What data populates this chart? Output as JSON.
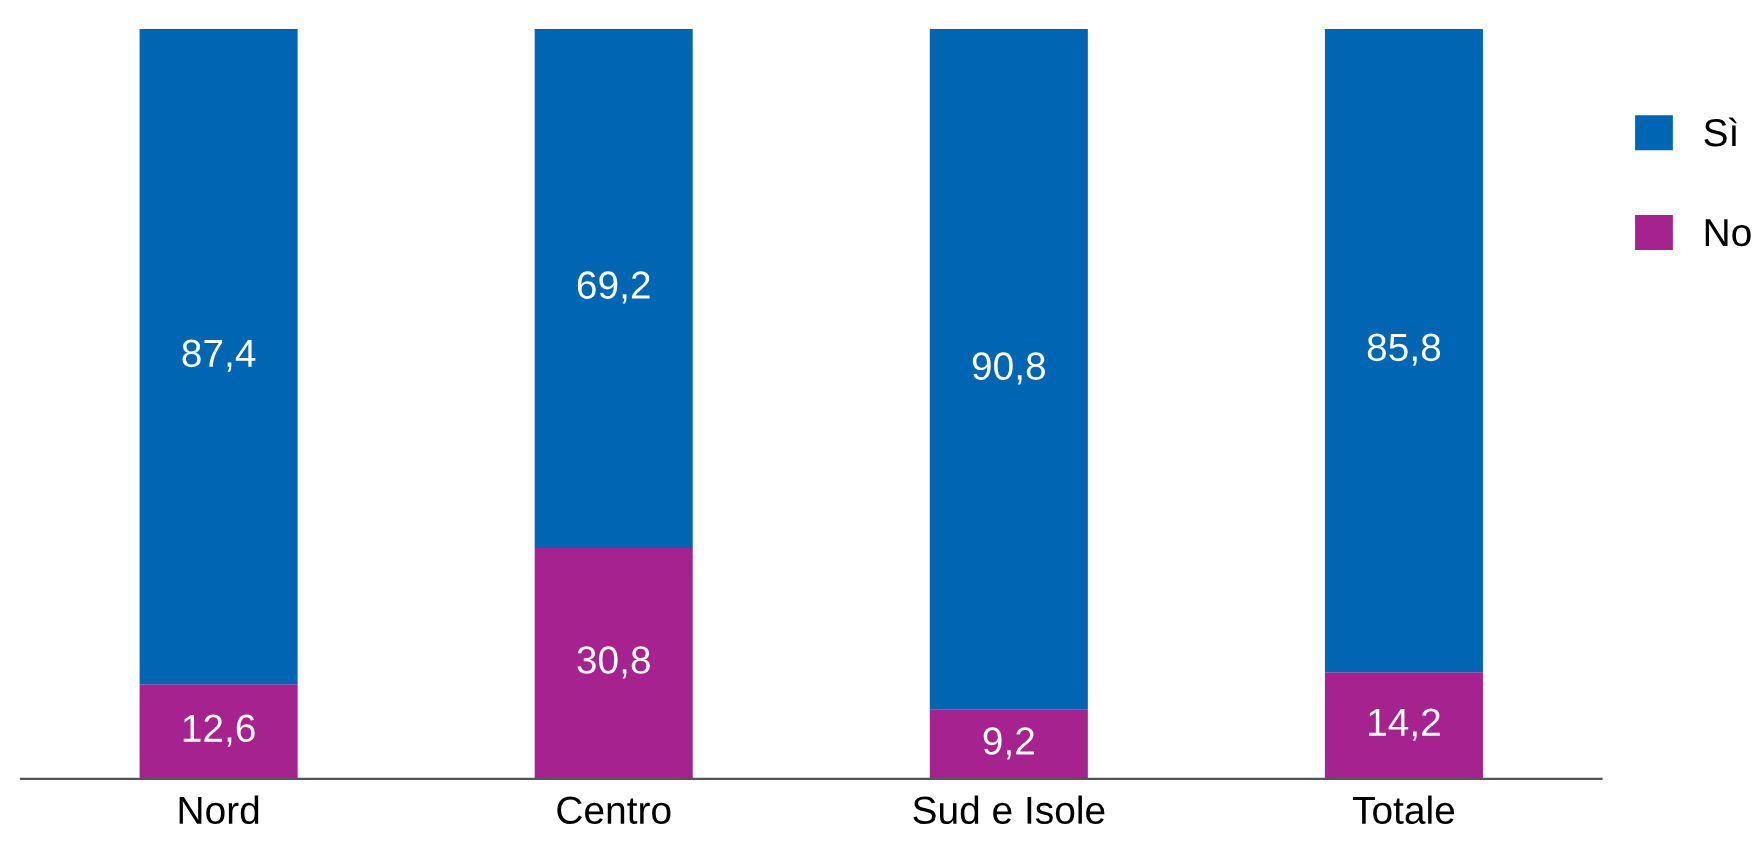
{
  "chart_data": {
    "type": "bar",
    "stacked": true,
    "categories": [
      "Nord",
      "Centro",
      "Sud e Isole",
      "Totale"
    ],
    "series": [
      {
        "name": "No",
        "color": "#a6228e",
        "values": [
          12.6,
          30.8,
          9.2,
          14.2
        ],
        "value_labels": [
          "12,6",
          "30,8",
          "9,2",
          "14,2"
        ]
      },
      {
        "name": "Sì",
        "color": "#0066b3",
        "values": [
          87.4,
          69.2,
          90.8,
          85.8
        ],
        "value_labels": [
          "87,4",
          "69,2",
          "90,8",
          "85,8"
        ]
      }
    ],
    "legend": "right",
    "grid": false
  }
}
